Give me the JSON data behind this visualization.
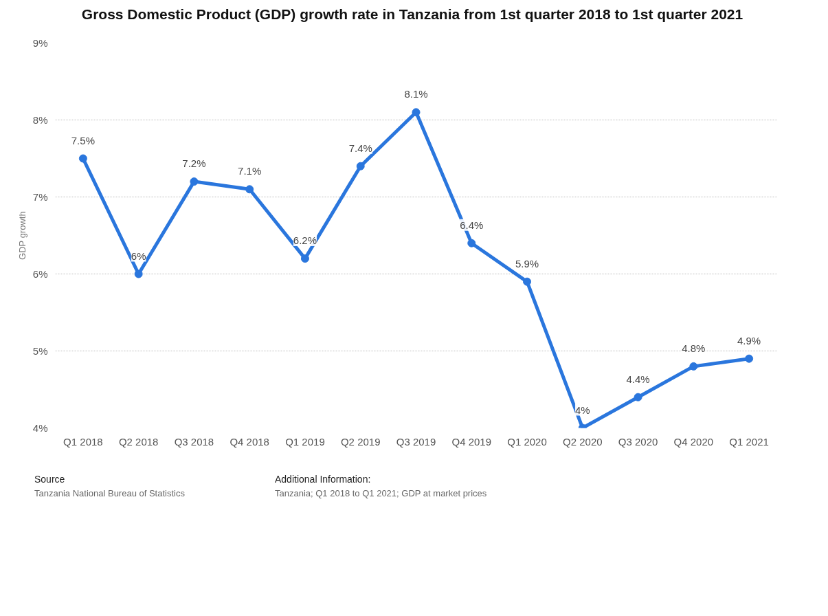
{
  "chart_data": {
    "type": "line",
    "title": "Gross Domestic Product (GDP) growth rate in Tanzania from 1st quarter 2018 to 1st quarter 2021",
    "ylabel": "GDP growth",
    "categories": [
      "Q1 2018",
      "Q2 2018",
      "Q3 2018",
      "Q4 2018",
      "Q1 2019",
      "Q2 2019",
      "Q3 2019",
      "Q4 2019",
      "Q1 2020",
      "Q2 2020",
      "Q3 2020",
      "Q4 2020",
      "Q1 2021"
    ],
    "series": [
      {
        "color": "#2a76dd",
        "values": [
          7.5,
          6,
          7.2,
          7.1,
          6.2,
          7.4,
          8.1,
          6.4,
          5.9,
          4,
          4.4,
          4.8,
          4.9
        ],
        "value_labels": [
          "7.5%",
          "6%",
          "7.2%",
          "7.1%",
          "6.2%",
          "7.4%",
          "8.1%",
          "6.4%",
          "5.9%",
          "4%",
          "4.4%",
          "4.8%",
          "4.9%"
        ]
      }
    ],
    "ylim": [
      4,
      9
    ],
    "yticks": [
      {
        "value": 4,
        "label": "4%"
      },
      {
        "value": 5,
        "label": "5%"
      },
      {
        "value": 6,
        "label": "6%"
      },
      {
        "value": 7,
        "label": "7%"
      },
      {
        "value": 8,
        "label": "8%"
      },
      {
        "value": 9,
        "label": "9%"
      }
    ],
    "grid": "y",
    "marker": "circle",
    "line_style": "solid",
    "annotations": [
      "Source",
      "Tanzania National Bureau of Statistics",
      "Additional Information:",
      "Tanzania; Q1 2018 to Q1 2021; GDP at market prices"
    ]
  }
}
